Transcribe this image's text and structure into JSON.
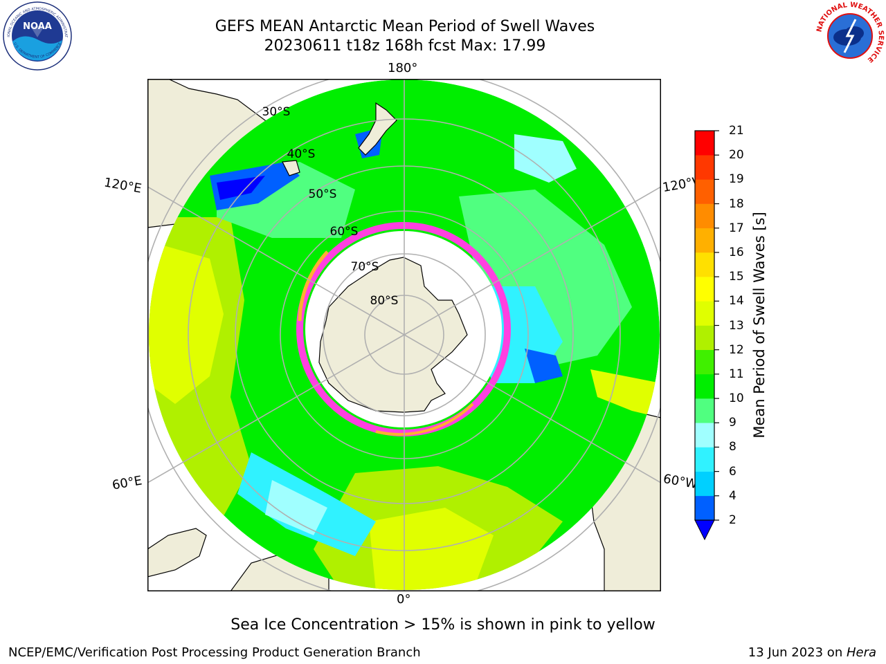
{
  "title": {
    "line1": "GEFS MEAN Antarctic Mean Period of Swell Waves",
    "line2": "20230611 t18z 168h fcst   Max: 17.99"
  },
  "logos": {
    "noaa": "NOAA",
    "nws_ring": "NATIONAL WEATHER SERVICE",
    "noaa_ring_top": "NATIONAL OCEANIC AND ATMOSPHERIC ADMINISTRATION",
    "noaa_ring_bottom": "U.S. DEPARTMENT OF COMMERCE"
  },
  "map": {
    "projection": "South polar stereographic",
    "lon_labels": {
      "top": "180°",
      "bottom": "0°",
      "left_upper": "120°E",
      "left_lower": "60°E",
      "right_upper": "120°W",
      "right_lower": "60°W"
    },
    "lat_labels": [
      "30°S",
      "40°S",
      "50°S",
      "60°S",
      "70°S",
      "80°S"
    ]
  },
  "colorbar": {
    "label": "Mean Period of Swell Waves [s]",
    "ticks": [
      "2",
      "4",
      "6",
      "8",
      "9",
      "10",
      "11",
      "12",
      "13",
      "14",
      "15",
      "16",
      "17",
      "18",
      "19",
      "20",
      "21"
    ],
    "colors": [
      "#0060ff",
      "#00d0ff",
      "#30f2ff",
      "#a0ffff",
      "#50ff80",
      "#00ee00",
      "#40f000",
      "#b0f000",
      "#e0ff00",
      "#ffff00",
      "#ffe000",
      "#ffb000",
      "#ff8c00",
      "#ff6000",
      "#ff3800",
      "#ff0000"
    ],
    "extend_below_color": "#0000ff"
  },
  "footer": {
    "note": "Sea Ice Concentration > 15% is shown in pink to yellow",
    "left": "NCEP/EMC/Verification Post Processing Product Generation Branch",
    "right_prefix": "13 Jun 2023 on ",
    "right_host": "Hera"
  }
}
